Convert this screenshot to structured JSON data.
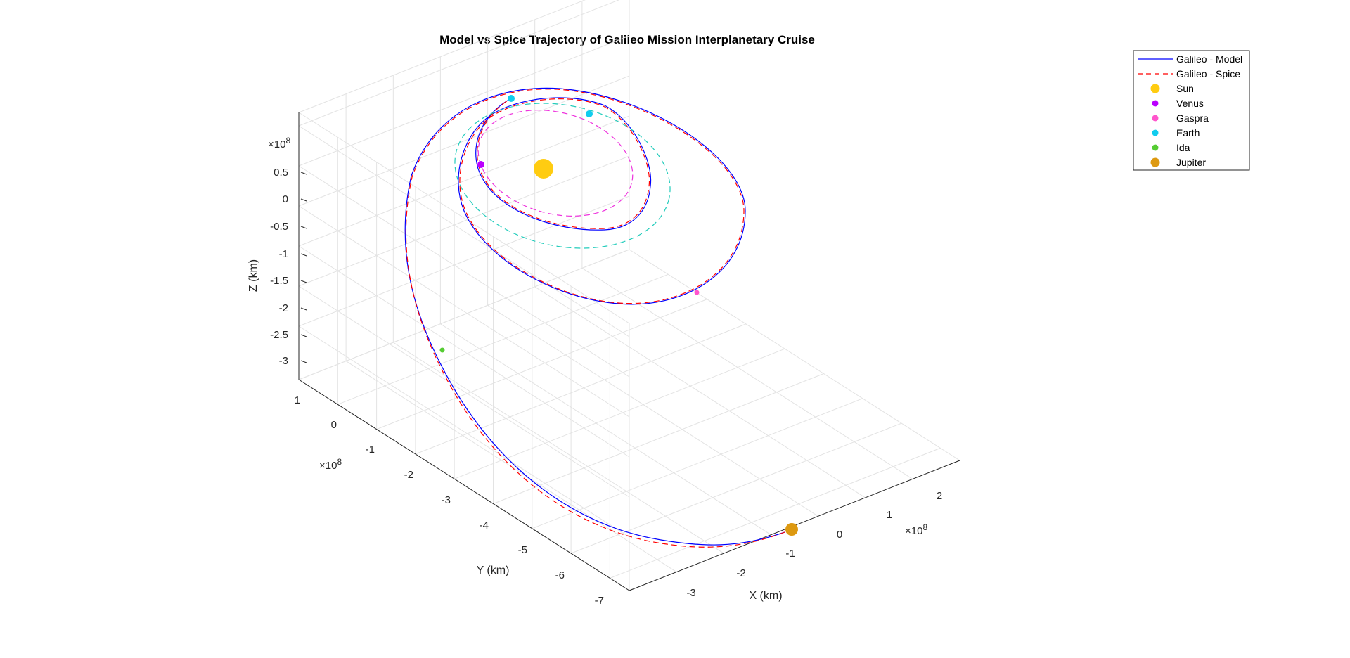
{
  "chart_data": {
    "type": "line",
    "title": "Model vs Spice Trajectory of Galileo Mission Interplanetary Cruise",
    "xlabel": "X (km)",
    "ylabel": "Y (km)",
    "zlabel": "Z (km)",
    "x_exponent": "×10^8",
    "y_exponent": "×10^8",
    "z_exponent": "×10^8",
    "x_ticks": [
      "-3",
      "-2",
      "-1",
      "0",
      "1",
      "2"
    ],
    "y_ticks": [
      "1",
      "0",
      "-1",
      "-2",
      "-3",
      "-4",
      "-5",
      "-6",
      "-7"
    ],
    "z_ticks": [
      "0.5",
      "0",
      "-0.5",
      "-1",
      "-1.5",
      "-2",
      "-2.5",
      "-3"
    ],
    "grid": true,
    "legend_position": "top-right",
    "series": [
      {
        "name": "Galileo - Model",
        "color": "#0000ff",
        "style": "solid"
      },
      {
        "name": "Galileo - Spice",
        "color": "#ff0000",
        "style": "dashed"
      }
    ],
    "points": [
      {
        "name": "Sun",
        "color": "#ffcc11"
      },
      {
        "name": "Venus",
        "color": "#bb00ff"
      },
      {
        "name": "Gaspra",
        "color": "#ff55cc"
      },
      {
        "name": "Earth",
        "color": "#11ccee"
      },
      {
        "name": "Ida",
        "color": "#55cc33"
      },
      {
        "name": "Jupiter",
        "color": "#dd9911"
      }
    ],
    "orbits": [
      {
        "body": "Earth",
        "color": "#22ccbb",
        "style": "dashed"
      },
      {
        "body": "Venus",
        "color": "#ee33dd",
        "style": "dashed"
      }
    ]
  }
}
